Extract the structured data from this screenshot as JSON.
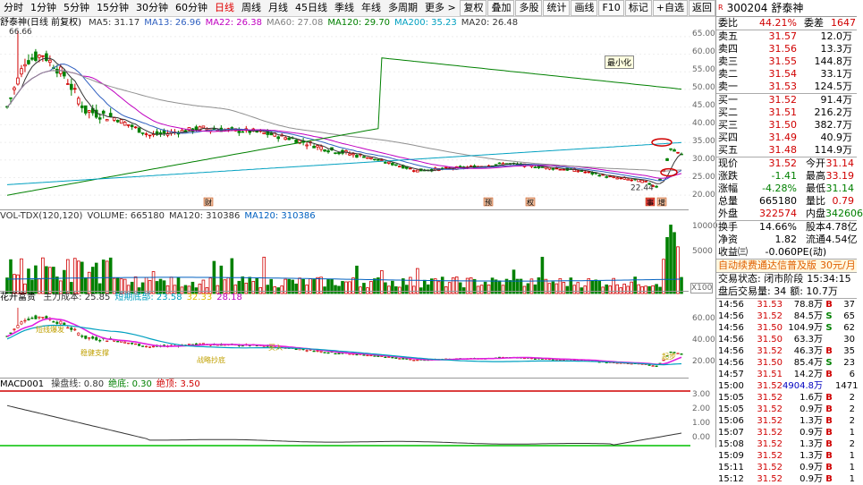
{
  "toolbar": {
    "periods": [
      "分时",
      "1分钟",
      "5分钟",
      "15分钟",
      "30分钟",
      "60分钟",
      "日线",
      "周线",
      "月线",
      "45日线",
      "季线",
      "年线",
      "多周期",
      "更多 >"
    ],
    "active": "日线",
    "buttons": [
      "复权",
      "叠加",
      "多股",
      "统计",
      "画线",
      "F10",
      "标记",
      "+自选",
      "返回"
    ]
  },
  "main_legend": {
    "name": "舒泰神(日线 前复权)",
    "items": [
      {
        "text": "MA5: 31.17",
        "color": "#333333"
      },
      {
        "text": "MA13: 26.96",
        "color": "#3060c0"
      },
      {
        "text": "MA22: 26.38",
        "color": "#c000c0"
      },
      {
        "text": "MA60: 27.08",
        "color": "#808080"
      },
      {
        "text": "MA120: 29.70",
        "color": "#008000"
      },
      {
        "text": "MA200: 35.23",
        "color": "#00a0c0"
      },
      {
        "text": "MA20: 26.48",
        "color": "#333333"
      }
    ]
  },
  "main_chart": {
    "high_label": "66.66",
    "low_label": "22.44",
    "minimize_label": "最小化",
    "event_markers": [
      "财",
      "预",
      "权",
      "事",
      "增"
    ],
    "yticks": [
      "65.00",
      "60.00",
      "55.00",
      "50.00",
      "45.00",
      "40.00",
      "35.00",
      "30.00",
      "25.00",
      "20.00"
    ]
  },
  "vol_legend": {
    "items": [
      {
        "text": "VOL-TDX(120,120)",
        "color": "#333333"
      },
      {
        "text": "VOLUME: 665180",
        "color": "#333333"
      },
      {
        "text": "MA120: 310386",
        "color": "#333333"
      },
      {
        "text": "MA120: 310386",
        "color": "#0060c0"
      }
    ],
    "yticks": [
      "10000",
      "5000"
    ],
    "unit": "X100"
  },
  "hk_legend": {
    "name": "花开富贵",
    "items": [
      {
        "text": "主力成本: 25.85",
        "color": "#333333"
      },
      {
        "text": "短期底部: 23.58",
        "color": "#00a0c0"
      },
      {
        "text": "32.33",
        "color": "#e0c000"
      },
      {
        "text": "28.18",
        "color": "#c000c0"
      }
    ],
    "yticks": [
      "60.00",
      "40.00",
      "20.00"
    ],
    "annotations": [
      "短线爆发",
      "稳健支撑",
      "战略抄底",
      "买入",
      "起步"
    ]
  },
  "macd_legend": {
    "name": "MACD001",
    "items": [
      {
        "text": "操盘线: 0.80",
        "color": "#333333"
      },
      {
        "text": "绝底: 0.30",
        "color": "#008000"
      },
      {
        "text": "绝顶: 3.50",
        "color": "#d00000"
      }
    ],
    "yticks": [
      "3.00",
      "2.00",
      "1.00",
      "0.00"
    ]
  },
  "stock": {
    "code": "300204",
    "name": "舒泰神",
    "flag": "R"
  },
  "order_book": {
    "ratio": {
      "label": "委比",
      "value": "44.21%",
      "label2": "委差",
      "value2": "1647"
    },
    "asks": [
      {
        "label": "卖五",
        "price": "31.57",
        "vol": "12.0万"
      },
      {
        "label": "卖四",
        "price": "31.56",
        "vol": "13.3万"
      },
      {
        "label": "卖三",
        "price": "31.55",
        "vol": "144.8万"
      },
      {
        "label": "卖二",
        "price": "31.54",
        "vol": "33.1万"
      },
      {
        "label": "卖一",
        "price": "31.53",
        "vol": "124.5万"
      }
    ],
    "bids": [
      {
        "label": "买一",
        "price": "31.52",
        "vol": "91.4万"
      },
      {
        "label": "买二",
        "price": "31.51",
        "vol": "216.2万"
      },
      {
        "label": "买三",
        "price": "31.50",
        "vol": "382.7万"
      },
      {
        "label": "买四",
        "price": "31.49",
        "vol": "40.9万"
      },
      {
        "label": "买五",
        "price": "31.48",
        "vol": "114.9万"
      }
    ]
  },
  "quote": [
    {
      "l1": "现价",
      "v1": "31.52",
      "c1": "red",
      "l2": "今开",
      "v2": "31.14",
      "c2": "red"
    },
    {
      "l1": "涨跌",
      "v1": "-1.41",
      "c1": "green",
      "l2": "最高",
      "v2": "33.19",
      "c2": "red"
    },
    {
      "l1": "涨幅",
      "v1": "-4.28%",
      "c1": "green",
      "l2": "最低",
      "v2": "31.14",
      "c2": "green"
    },
    {
      "l1": "总量",
      "v1": "665180",
      "c1": "",
      "l2": "量比",
      "v2": "0.79",
      "c2": "red"
    },
    {
      "l1": "外盘",
      "v1": "322574",
      "c1": "red",
      "l2": "内盘",
      "v2": "342606",
      "c2": "green"
    },
    {
      "l1": "换手",
      "v1": "14.66%",
      "c1": "",
      "l2": "股本",
      "v2": "4.78亿",
      "c2": ""
    },
    {
      "l1": "净资",
      "v1": "1.82",
      "c1": "",
      "l2": "流通",
      "v2": "4.54亿",
      "c2": ""
    },
    {
      "l1": "收益㈢",
      "v1": "-0.060",
      "c1": "",
      "l2": "PE(动)",
      "v2": "",
      "c2": ""
    }
  ],
  "promo": {
    "text": "自动续费通达信普及版",
    "price": "30元/月"
  },
  "trade_status": {
    "label": "交易状态: 闭市阶段",
    "time": "15:34:15"
  },
  "after_hours": {
    "label": "盘后交易量: 34",
    "amount": "额: 10.7万"
  },
  "ticks": [
    {
      "t": "14:56",
      "p": "31.53",
      "v": "78.8万",
      "d": "B",
      "n": "37",
      "pc": "red"
    },
    {
      "t": "14:56",
      "p": "31.52",
      "v": "84.5万",
      "d": "S",
      "n": "65",
      "pc": "red"
    },
    {
      "t": "14:56",
      "p": "31.50",
      "v": "104.9万",
      "d": "S",
      "n": "62",
      "pc": "red"
    },
    {
      "t": "14:56",
      "p": "31.50",
      "v": "63.3万",
      "d": "",
      "n": "30",
      "pc": "red"
    },
    {
      "t": "14:56",
      "p": "31.52",
      "v": "46.3万",
      "d": "B",
      "n": "35",
      "pc": "red"
    },
    {
      "t": "14:56",
      "p": "31.50",
      "v": "85.4万",
      "d": "S",
      "n": "23",
      "pc": "red"
    },
    {
      "t": "14:57",
      "p": "31.51",
      "v": "14.2万",
      "d": "B",
      "n": "6",
      "pc": "red"
    },
    {
      "t": "15:00",
      "p": "31.52",
      "v": "4904.8万",
      "d": "",
      "n": "1471",
      "pc": "red"
    },
    {
      "t": "15:05",
      "p": "31.52",
      "v": "1.6万",
      "d": "B",
      "n": "2",
      "pc": "red"
    },
    {
      "t": "15:05",
      "p": "31.52",
      "v": "0.9万",
      "d": "B",
      "n": "2",
      "pc": "red"
    },
    {
      "t": "15:06",
      "p": "31.52",
      "v": "1.3万",
      "d": "B",
      "n": "2",
      "pc": "red"
    },
    {
      "t": "15:07",
      "p": "31.52",
      "v": "0.9万",
      "d": "B",
      "n": "1",
      "pc": "red"
    },
    {
      "t": "15:08",
      "p": "31.52",
      "v": "1.3万",
      "d": "B",
      "n": "2",
      "pc": "red"
    },
    {
      "t": "15:09",
      "p": "31.52",
      "v": "1.3万",
      "d": "B",
      "n": "1",
      "pc": "red"
    },
    {
      "t": "15:11",
      "p": "31.52",
      "v": "0.9万",
      "d": "B",
      "n": "1",
      "pc": "red"
    },
    {
      "t": "15:12",
      "p": "31.52",
      "v": "0.9万",
      "d": "B",
      "n": "1",
      "pc": "red"
    }
  ]
}
